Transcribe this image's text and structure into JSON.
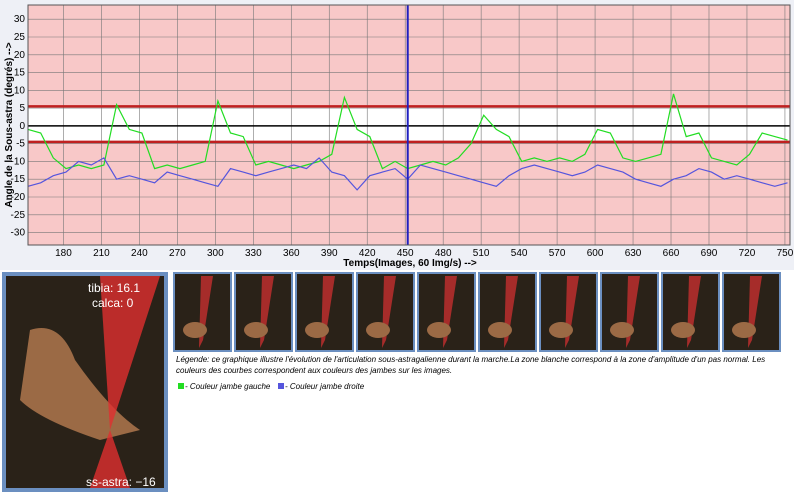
{
  "chart_data": {
    "type": "line",
    "xlabel": "Temps(Images, 60 Img/s) -->",
    "ylabel": "Angle de la Sous-astra (degrés) -->",
    "x": [
      152,
      162,
      172,
      182,
      192,
      202,
      212,
      222,
      232,
      242,
      252,
      262,
      272,
      282,
      292,
      302,
      312,
      322,
      332,
      342,
      352,
      362,
      372,
      382,
      392,
      402,
      412,
      422,
      432,
      442,
      452,
      462,
      472,
      482,
      492,
      502,
      512,
      522,
      532,
      542,
      552,
      562,
      572,
      582,
      592,
      602,
      612,
      622,
      632,
      642,
      652,
      662,
      672,
      682,
      692,
      702,
      712,
      722,
      732,
      742,
      752
    ],
    "series": [
      {
        "name": "- Couleur jambe gauche",
        "color": "#22dd22",
        "values": [
          -1,
          -2,
          -9,
          -12,
          -11,
          -12,
          -11,
          6,
          -1,
          -2,
          -12,
          -11,
          -12,
          -11,
          -10,
          7,
          -2,
          -3,
          -11,
          -10,
          -11,
          -12,
          -11,
          -10,
          -8,
          8,
          -1,
          -3,
          -12,
          -10,
          -12,
          -11,
          -10,
          -11,
          -9,
          -5,
          3,
          -1,
          -3,
          -10,
          -9,
          -10,
          -9,
          -10,
          -8,
          -1,
          -2,
          -9,
          -10,
          -9,
          -8,
          9,
          -3,
          -2,
          -9,
          -10,
          -11,
          -8,
          -2,
          -3,
          -4
        ]
      },
      {
        "name": "- Couleur jambe droite",
        "color": "#5555dd",
        "values": [
          -17,
          -16,
          -14,
          -13,
          -10,
          -11,
          -9,
          -15,
          -14,
          -15,
          -16,
          -13,
          -14,
          -15,
          -16,
          -17,
          -12,
          -13,
          -14,
          -13,
          -12,
          -11,
          -12,
          -9,
          -13,
          -14,
          -18,
          -14,
          -13,
          -12,
          -15,
          -11,
          -12,
          -13,
          -14,
          -15,
          -16,
          -17,
          -14,
          -12,
          -11,
          -12,
          -13,
          -14,
          -13,
          -11,
          -12,
          -13,
          -15,
          -16,
          -17,
          -15,
          -14,
          -12,
          -13,
          -15,
          -14,
          -15,
          -16,
          -17,
          -16
        ]
      }
    ],
    "xlim": [
      152,
      754
    ],
    "ylim": [
      -33.5,
      34
    ],
    "xticks": [
      180,
      210,
      240,
      270,
      300,
      330,
      360,
      390,
      420,
      450,
      480,
      510,
      540,
      570,
      600,
      630,
      660,
      690,
      720,
      750
    ],
    "yticks": [
      -30,
      -25,
      -20,
      -15,
      -10,
      -5,
      0,
      5,
      10,
      15,
      20,
      25,
      30
    ],
    "grid": true,
    "normal_zone": [
      -4.5,
      5.5
    ],
    "cursor_x": 452
  },
  "left_image": {
    "tibia": "tibia: 16.1",
    "calca": "calca: 0",
    "ss_astra": "ss-astra: −16"
  },
  "caption": "Légende: ce graphique illustre l'évolution de l'articulation sous-astragalienne durant la marche.La zone blanche correspond à la zone d'amplitude d'un pas normal. Les couleurs des courbes correspondent aux couleurs des jambes sur les images."
}
